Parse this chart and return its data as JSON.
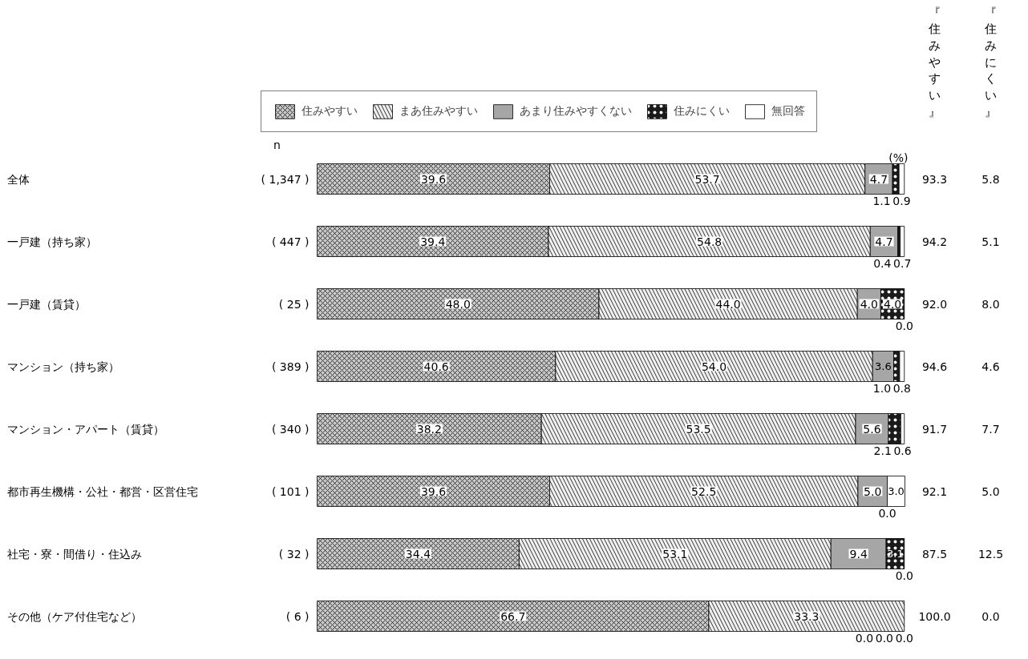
{
  "chart_data": {
    "type": "bar",
    "orientation": "horizontal",
    "stacked": true,
    "legend": "top",
    "categories": [
      "全体",
      "一戸建（持ち家）",
      "一戸建（賃貸）",
      "マンション（持ち家）",
      "マンション・アパート（賃貸）",
      "都市再生機構・公社・都営・区営住宅",
      "社宅・寮・間借り・住込み",
      "その他（ケア付住宅など）"
    ],
    "series": [
      {
        "name": "住みやすい",
        "color": "#c8c8c8",
        "values": [
          39.6,
          39.4,
          48.0,
          40.6,
          38.2,
          39.6,
          34.4,
          66.7
        ],
        "value_labels": [
          "39.6",
          "39.4",
          "48.0",
          "40.6",
          "38.2",
          "39.6",
          "34.4",
          "66.7"
        ]
      },
      {
        "name": "まあ住みやすい",
        "color": "#f0f0f0",
        "values": [
          53.7,
          54.8,
          44.0,
          54.0,
          53.5,
          52.5,
          53.1,
          33.3
        ],
        "value_labels": [
          "53.7",
          "54.8",
          "44.0",
          "54.0",
          "53.5",
          "52.5",
          "53.1",
          "33.3"
        ]
      },
      {
        "name": "あまり住みやすくない",
        "color": "#a6a6a6",
        "values": [
          4.7,
          4.7,
          4.0,
          3.6,
          5.6,
          5.0,
          9.4,
          0.0
        ],
        "value_labels": [
          "4.7",
          "4.7",
          "4.0",
          "3.6",
          "5.6",
          "5.0",
          "9.4",
          "0.0"
        ]
      },
      {
        "name": "住みにくい",
        "color": "#1a1a1a",
        "values": [
          1.1,
          0.4,
          4.0,
          1.0,
          2.1,
          0.0,
          3.1,
          0.0
        ],
        "value_labels": [
          "1.1",
          "0.4",
          "4.0",
          "1.0",
          "2.1",
          "0.0",
          "3.1",
          "0.0"
        ]
      },
      {
        "name": "無回答",
        "color": "#ffffff",
        "values": [
          0.9,
          0.7,
          0.0,
          0.8,
          0.6,
          3.0,
          0.0,
          0.0
        ],
        "value_labels": [
          "0.9",
          "0.7",
          "0.0",
          "0.8",
          "0.6",
          "3.0",
          "0.0",
          "0.0"
        ]
      }
    ],
    "annotations": [
      "n",
      "(%)",
      "『住みやすい』",
      "『住みにくい』",
      "( 1,347 )",
      "( 447 )",
      "( 25 )",
      "( 389 )",
      "( 340 )",
      "( 101 )",
      "( 32 )",
      "( 6 )",
      "93.3",
      "94.2",
      "92.0",
      "94.6",
      "91.7",
      "92.1",
      "87.5",
      "100.0",
      "5.8",
      "5.1",
      "8.0",
      "4.6",
      "7.7",
      "5.0",
      "12.5",
      "0.0"
    ]
  }
}
